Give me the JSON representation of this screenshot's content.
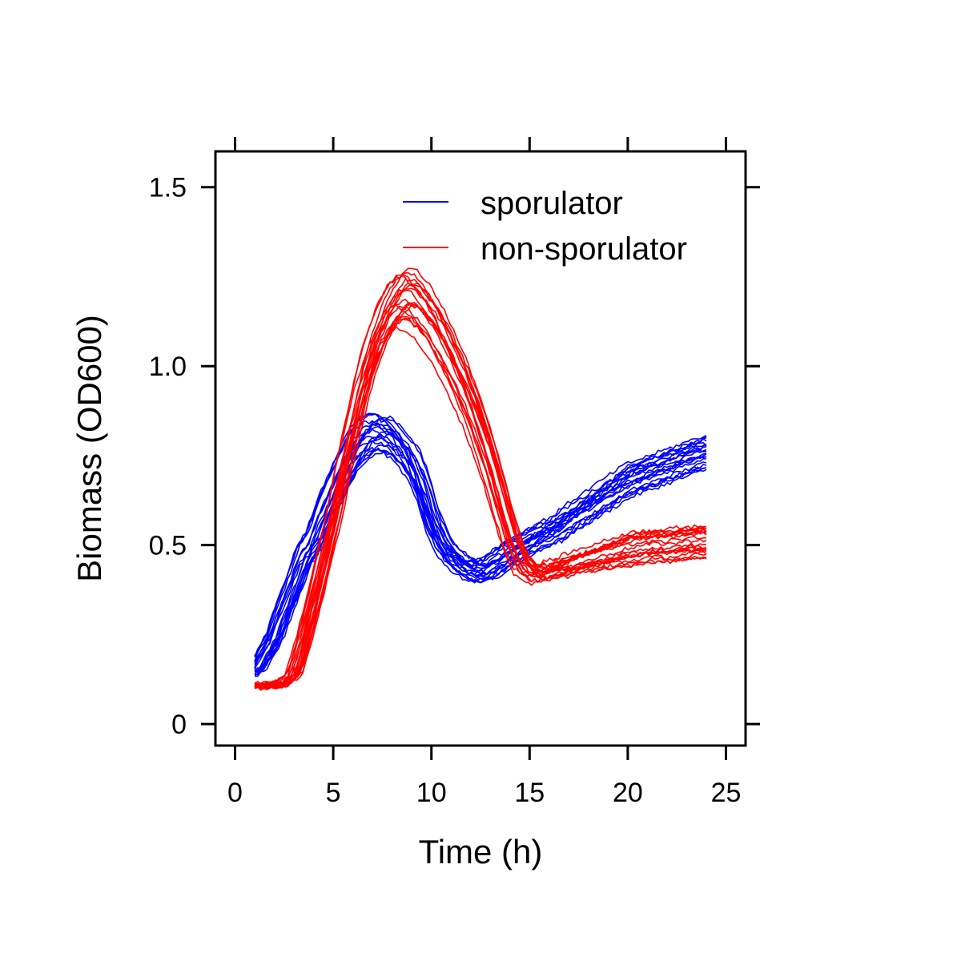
{
  "chart_data": {
    "type": "line",
    "xlabel": "Time (h)",
    "ylabel": "Biomass (OD600)",
    "xlim": [
      -1,
      26
    ],
    "ylim": [
      -0.06,
      1.6
    ],
    "x_ticks": [
      0,
      5,
      10,
      15,
      20,
      25
    ],
    "x_tick_labels": [
      "0",
      "5",
      "10",
      "15",
      "20",
      "25"
    ],
    "y_ticks": [
      0,
      0.5,
      1.0,
      1.5
    ],
    "y_tick_labels": [
      "0",
      "0.5",
      "1.0",
      "1.5"
    ],
    "grid": false,
    "legend_position": "top-right",
    "series_groups": [
      {
        "name": "sporulator",
        "color": "#0000ff",
        "replicates": 20,
        "representative": {
          "x": [
            1.0,
            1.5,
            2.0,
            2.5,
            3.0,
            3.5,
            4.0,
            4.5,
            5.0,
            5.5,
            6.0,
            6.5,
            7.0,
            7.5,
            8.0,
            8.5,
            9.0,
            9.5,
            10.0,
            10.5,
            11.0,
            11.5,
            12.0,
            12.5,
            13.0,
            13.5,
            14.0,
            14.5,
            15.0,
            15.5,
            16.0,
            16.5,
            17.0,
            18.0,
            19.0,
            20.0,
            21.0,
            22.0,
            23.0,
            24.0
          ],
          "y": [
            0.15,
            0.2,
            0.25,
            0.33,
            0.4,
            0.48,
            0.52,
            0.6,
            0.66,
            0.72,
            0.78,
            0.82,
            0.84,
            0.84,
            0.82,
            0.79,
            0.75,
            0.68,
            0.58,
            0.52,
            0.48,
            0.46,
            0.44,
            0.44,
            0.45,
            0.47,
            0.49,
            0.5,
            0.52,
            0.53,
            0.54,
            0.55,
            0.57,
            0.6,
            0.63,
            0.66,
            0.68,
            0.7,
            0.72,
            0.74
          ]
        },
        "y_spread_end": [
          0.64,
          0.78
        ]
      },
      {
        "name": "non-sporulator",
        "color": "#ff0000",
        "replicates": 20,
        "representative": {
          "x": [
            1.0,
            1.5,
            2.0,
            2.5,
            3.0,
            3.5,
            4.0,
            4.5,
            5.0,
            5.5,
            6.0,
            6.5,
            7.0,
            7.5,
            8.0,
            8.5,
            9.0,
            9.5,
            10.0,
            10.5,
            11.0,
            11.5,
            12.0,
            12.5,
            13.0,
            13.5,
            14.0,
            14.5,
            15.0,
            15.5,
            16.0,
            16.5,
            17.0,
            18.0,
            19.0,
            20.0,
            21.0,
            22.0,
            23.0,
            24.0
          ],
          "y": [
            0.11,
            0.11,
            0.11,
            0.12,
            0.15,
            0.25,
            0.36,
            0.48,
            0.6,
            0.74,
            0.86,
            0.98,
            1.07,
            1.14,
            1.19,
            1.22,
            1.21,
            1.18,
            1.14,
            1.09,
            1.03,
            0.97,
            0.9,
            0.82,
            0.73,
            0.63,
            0.53,
            0.46,
            0.43,
            0.42,
            0.43,
            0.43,
            0.44,
            0.45,
            0.46,
            0.47,
            0.48,
            0.48,
            0.49,
            0.49
          ]
        },
        "y_spread_end": [
          0.47,
          0.57
        ]
      }
    ]
  }
}
